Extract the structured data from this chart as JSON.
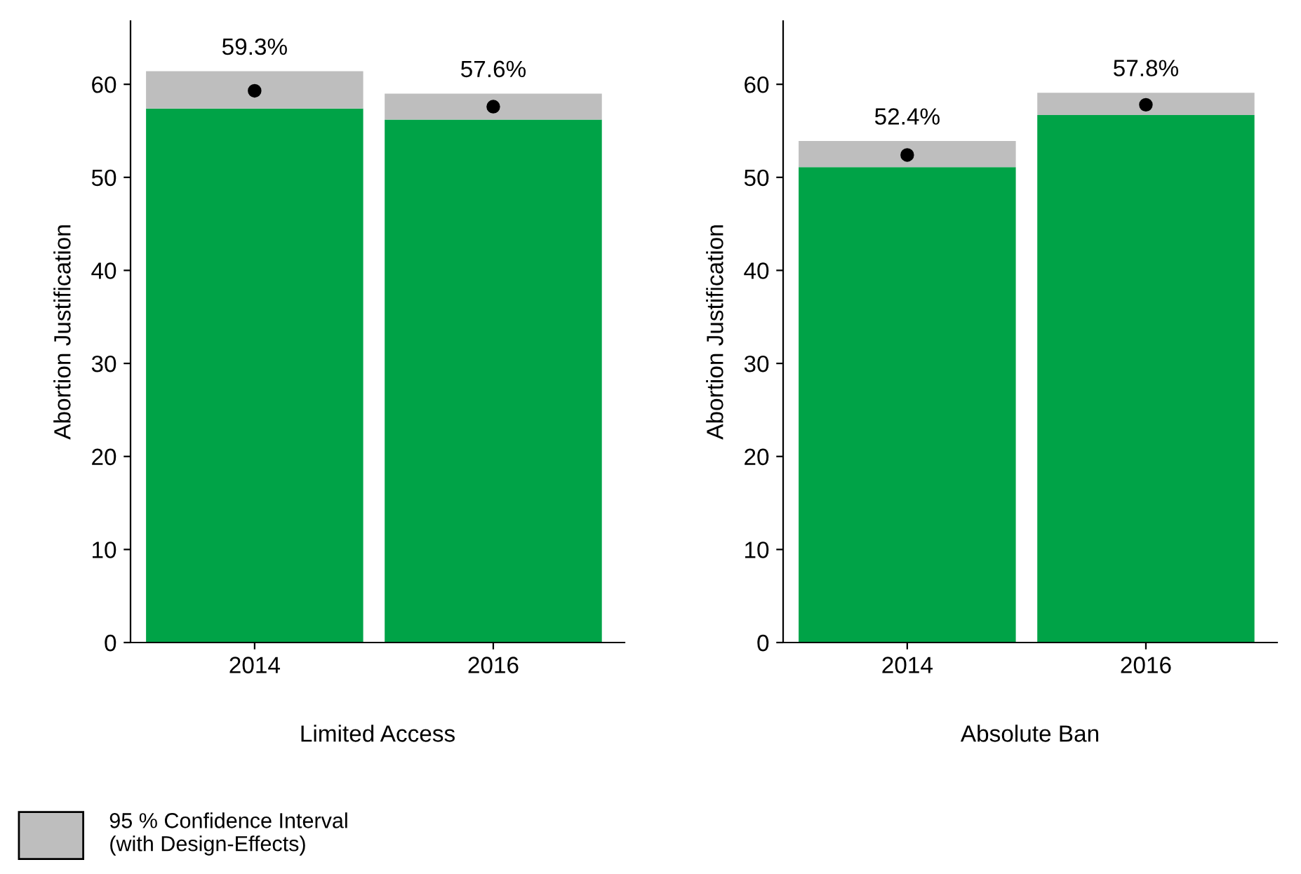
{
  "chart_data": [
    {
      "type": "bar",
      "stacked": true,
      "xlabel": "Limited Access",
      "ylabel": "Abortion Justification",
      "categories": [
        "2014",
        "2016"
      ],
      "ylim": [
        0,
        66.8
      ],
      "yticks": [
        0,
        10,
        20,
        30,
        40,
        50,
        60
      ],
      "grid": false,
      "legend": "bottom left",
      "series": [
        {
          "color": "#00a347",
          "values": [
            57.4,
            56.2
          ]
        },
        {
          "name": "95 % Confidence Interval\n(with Design-Effects)",
          "color": "#bebebe",
          "values": [
            4.0,
            2.8
          ]
        },
        {
          "type": "scatter",
          "marker": "circle",
          "color": "#000000",
          "values": [
            59.3,
            57.6
          ],
          "value_labels": [
            "59.3%",
            "57.6%"
          ]
        }
      ]
    },
    {
      "type": "bar",
      "stacked": true,
      "xlabel": "Absolute Ban",
      "ylabel": "Abortion Justification",
      "categories": [
        "2014",
        "2016"
      ],
      "ylim": [
        0,
        66.8
      ],
      "yticks": [
        0,
        10,
        20,
        30,
        40,
        50,
        60
      ],
      "grid": false,
      "series": [
        {
          "color": "#00a347",
          "values": [
            51.1,
            56.7
          ]
        },
        {
          "color": "#bebebe",
          "values": [
            2.8,
            2.4
          ]
        },
        {
          "type": "scatter",
          "marker": "circle",
          "color": "#000000",
          "values": [
            52.4,
            57.8
          ],
          "value_labels": [
            "52.4%",
            "57.8%"
          ]
        }
      ]
    }
  ]
}
